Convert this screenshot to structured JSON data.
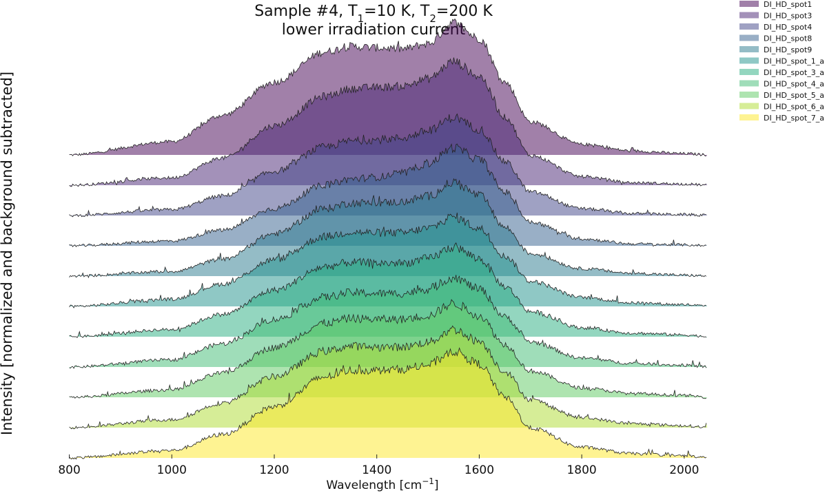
{
  "chart_data": {
    "type": "area",
    "style": "ridgeline",
    "title_line1_prefix": "Sample #4, T",
    "title_t1_sub": "1",
    "title_t1_value": "=10 K, T",
    "title_t2_sub": "2",
    "title_t2_value": "=200 K",
    "title_line2": "lower irradiation current",
    "xlabel_text": "Wavelength [cm",
    "xlabel_sup": "−1",
    "xlabel_close": "]",
    "ylabel": "Intensity [normalized and background subtracted]",
    "xlim": [
      775,
      2050
    ],
    "xticks": [
      800,
      1000,
      1200,
      1400,
      1600,
      1800,
      2000
    ],
    "x_tick_labels": [
      "800",
      "1000",
      "1200",
      "1400",
      "1600",
      "1800",
      "2000"
    ],
    "legend_position": "top-right",
    "series": [
      {
        "name": "DI_HD_spot1",
        "color": "#440154",
        "peak_height": 3.1,
        "x": [
          800,
          1000,
          1100,
          1200,
          1300,
          1350,
          1400,
          1450,
          1500,
          1550,
          1600,
          1650,
          1700,
          1800,
          1900,
          2000,
          2050
        ],
        "values": [
          0.0,
          0.1,
          0.3,
          0.55,
          0.78,
          0.82,
          0.81,
          0.8,
          0.84,
          1.0,
          0.88,
          0.55,
          0.25,
          0.08,
          0.03,
          0.01,
          0.0
        ]
      },
      {
        "name": "DI_HD_spot3",
        "color": "#482374",
        "peak_height": 2.9,
        "x": [
          800,
          1000,
          1100,
          1200,
          1300,
          1350,
          1400,
          1450,
          1500,
          1550,
          1600,
          1650,
          1700,
          1800,
          1900,
          2000,
          2050
        ],
        "values": [
          0.0,
          0.06,
          0.22,
          0.48,
          0.72,
          0.78,
          0.79,
          0.8,
          0.86,
          1.0,
          0.88,
          0.55,
          0.24,
          0.07,
          0.02,
          0.01,
          0.0
        ]
      },
      {
        "name": "DI_HD_spot4",
        "color": "#404387",
        "peak_height": 2.3,
        "x": [
          800,
          1000,
          1100,
          1200,
          1300,
          1350,
          1400,
          1450,
          1500,
          1550,
          1600,
          1650,
          1700,
          1800,
          1900,
          2000,
          2050
        ],
        "values": [
          0.0,
          0.06,
          0.2,
          0.45,
          0.7,
          0.76,
          0.77,
          0.79,
          0.86,
          1.0,
          0.88,
          0.55,
          0.24,
          0.07,
          0.02,
          0.01,
          0.0
        ]
      },
      {
        "name": "DI_HD_spot8",
        "color": "#345f8d",
        "peak_height": 2.3,
        "x": [
          800,
          1000,
          1100,
          1200,
          1300,
          1350,
          1400,
          1450,
          1500,
          1550,
          1600,
          1650,
          1700,
          1800,
          1900,
          2000,
          2050
        ],
        "values": [
          0.0,
          0.05,
          0.16,
          0.38,
          0.62,
          0.68,
          0.7,
          0.74,
          0.84,
          1.0,
          0.88,
          0.55,
          0.24,
          0.07,
          0.02,
          0.01,
          0.0
        ]
      },
      {
        "name": "DI_HD_spot9",
        "color": "#29798e",
        "peak_height": 2.2,
        "x": [
          800,
          1000,
          1100,
          1200,
          1300,
          1350,
          1400,
          1450,
          1500,
          1550,
          1600,
          1650,
          1700,
          1800,
          1900,
          2000,
          2050
        ],
        "values": [
          0.0,
          0.05,
          0.18,
          0.45,
          0.72,
          0.78,
          0.78,
          0.79,
          0.85,
          1.0,
          0.86,
          0.52,
          0.24,
          0.08,
          0.03,
          0.01,
          0.0
        ]
      },
      {
        "name": "DI_HD_spot_1_a",
        "color": "#20928c",
        "peak_height": 2.1,
        "x": [
          800,
          1000,
          1100,
          1200,
          1300,
          1350,
          1400,
          1450,
          1500,
          1550,
          1600,
          1650,
          1700,
          1800,
          1900,
          2000,
          2050
        ],
        "values": [
          0.0,
          0.08,
          0.25,
          0.52,
          0.78,
          0.83,
          0.82,
          0.82,
          0.87,
          1.0,
          0.87,
          0.56,
          0.28,
          0.1,
          0.04,
          0.02,
          0.0
        ]
      },
      {
        "name": "DI_HD_spot_3_a",
        "color": "#28ae80",
        "peak_height": 2.1,
        "x": [
          800,
          1000,
          1100,
          1200,
          1300,
          1350,
          1400,
          1450,
          1500,
          1550,
          1600,
          1650,
          1700,
          1800,
          1900,
          2000,
          2050
        ],
        "values": [
          0.0,
          0.08,
          0.25,
          0.52,
          0.78,
          0.83,
          0.82,
          0.82,
          0.87,
          1.0,
          0.87,
          0.56,
          0.28,
          0.1,
          0.04,
          0.02,
          0.0
        ]
      },
      {
        "name": "DI_HD_spot_4_a",
        "color": "#3fbc73",
        "peak_height": 2.1,
        "x": [
          800,
          1000,
          1100,
          1200,
          1300,
          1350,
          1400,
          1450,
          1500,
          1550,
          1600,
          1650,
          1700,
          1800,
          1900,
          2000,
          2050
        ],
        "values": [
          0.0,
          0.08,
          0.26,
          0.53,
          0.78,
          0.83,
          0.82,
          0.82,
          0.87,
          1.0,
          0.87,
          0.56,
          0.28,
          0.1,
          0.04,
          0.02,
          0.0
        ]
      },
      {
        "name": "DI_HD_spot_5_a",
        "color": "#5ec962",
        "peak_height": 2.2,
        "x": [
          800,
          1000,
          1100,
          1200,
          1300,
          1350,
          1400,
          1450,
          1500,
          1550,
          1600,
          1650,
          1700,
          1800,
          1900,
          2000,
          2050
        ],
        "values": [
          0.0,
          0.08,
          0.26,
          0.53,
          0.79,
          0.84,
          0.83,
          0.83,
          0.87,
          1.0,
          0.87,
          0.56,
          0.28,
          0.1,
          0.04,
          0.02,
          0.0
        ]
      },
      {
        "name": "DI_HD_spot_6_a",
        "color": "#addc30",
        "peak_height": 2.3,
        "x": [
          800,
          1000,
          1100,
          1200,
          1300,
          1350,
          1400,
          1450,
          1500,
          1550,
          1600,
          1650,
          1700,
          1800,
          1900,
          2000,
          2050
        ],
        "values": [
          0.0,
          0.08,
          0.25,
          0.52,
          0.78,
          0.83,
          0.82,
          0.82,
          0.87,
          1.0,
          0.88,
          0.57,
          0.28,
          0.1,
          0.04,
          0.02,
          0.0
        ]
      },
      {
        "name": "DI_HD_spot_7_a",
        "color": "#fde725",
        "peak_height": 2.5,
        "x": [
          800,
          1000,
          1100,
          1200,
          1300,
          1350,
          1400,
          1450,
          1500,
          1550,
          1600,
          1650,
          1700,
          1800,
          1900,
          2000,
          2050
        ],
        "values": [
          0.0,
          0.07,
          0.22,
          0.48,
          0.76,
          0.82,
          0.82,
          0.83,
          0.87,
          1.0,
          0.88,
          0.57,
          0.28,
          0.1,
          0.04,
          0.02,
          0.0
        ]
      }
    ]
  }
}
